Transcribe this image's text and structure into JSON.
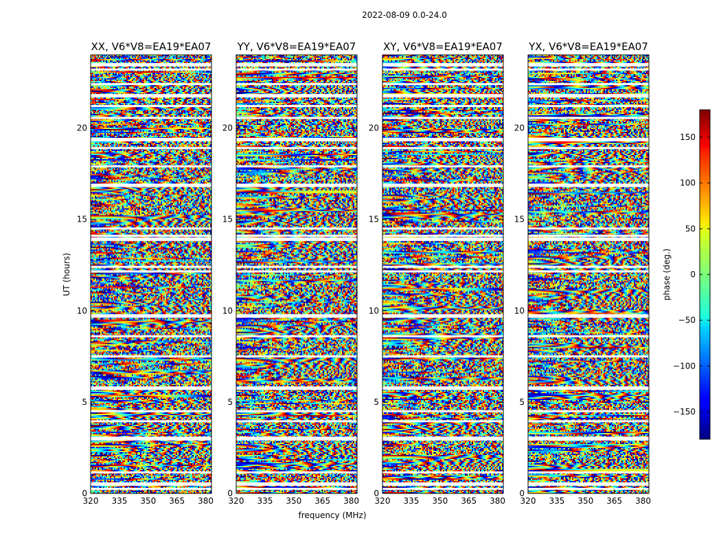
{
  "chart_data": {
    "type": "heatmap",
    "suptitle": "2022-08-09 0.0-24.0",
    "panels": [
      {
        "title": "XX, V6*V8=EA19*EA07",
        "id": "xx"
      },
      {
        "title": "YY, V6*V8=EA19*EA07",
        "id": "yy"
      },
      {
        "title": "XY, V6*V8=EA19*EA07",
        "id": "xy"
      },
      {
        "title": "YX, V6*V8=EA19*EA07",
        "id": "yx"
      }
    ],
    "xlabel": "frequency (MHz)",
    "ylabel": "UT (hours)",
    "xlim": [
      320,
      383
    ],
    "xticks": [
      320,
      335,
      350,
      365,
      380
    ],
    "ylim": [
      0,
      24
    ],
    "yticks": [
      0,
      5,
      10,
      15,
      20
    ],
    "colorbar": {
      "label": "phase (deg.)",
      "range": [
        -180,
        180
      ],
      "ticks": [
        -150,
        -100,
        -50,
        0,
        50,
        100,
        150
      ],
      "tick_labels": [
        "−150",
        "−100",
        "−50",
        "0",
        "50",
        "100",
        "150"
      ],
      "colormap": "jet"
    },
    "flagged_rows_hours": [
      23.5,
      23.2,
      22.4,
      21.8,
      21.2,
      20.55,
      19.4,
      18.9,
      17.9,
      16.9,
      14.5,
      14.1,
      13.95,
      12.4,
      12.15,
      9.75,
      8.6,
      7.5,
      5.8,
      4.5,
      3.95,
      3.05,
      2.95,
      1.15,
      0.55,
      0.25
    ]
  }
}
